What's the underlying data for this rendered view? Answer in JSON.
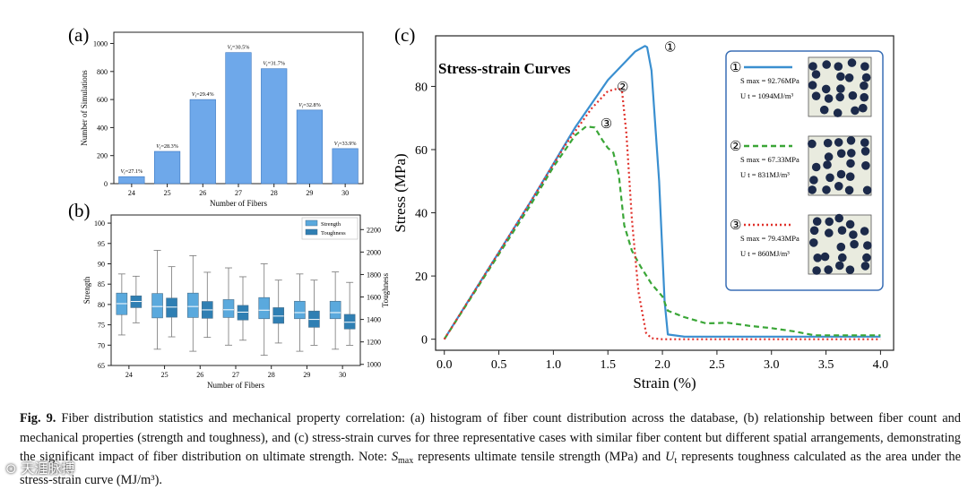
{
  "panels": {
    "a": "(a)",
    "b": "(b)",
    "c": "(c)"
  },
  "chart_data": [
    {
      "id": "a",
      "type": "bar",
      "title": "",
      "xlabel": "Number of Fibers",
      "ylabel": "Number of Simulations",
      "categories": [
        "24",
        "25",
        "26",
        "27",
        "28",
        "29",
        "30"
      ],
      "values": [
        50,
        230,
        600,
        935,
        820,
        525,
        250
      ],
      "bar_labels": [
        "V_f=27.1%",
        "V_f=28.3%",
        "V_f=29.4%",
        "V_f=30.5%",
        "V_f=31.7%",
        "V_f=32.8%",
        "V_f=33.9%"
      ],
      "ylim": [
        0,
        1080
      ],
      "yticks": [
        0,
        200,
        400,
        600,
        800,
        1000
      ],
      "color": "#6ea8ea"
    },
    {
      "id": "b",
      "type": "box",
      "xlabel": "Number of Fibers",
      "ylabel": "Strength",
      "ylabel_right": "Toughness",
      "categories": [
        "24",
        "25",
        "26",
        "27",
        "28",
        "29",
        "30"
      ],
      "ylim": [
        65,
        102
      ],
      "yticks": [
        65,
        70,
        75,
        80,
        85,
        90,
        95,
        100
      ],
      "ylim_right": [
        990,
        2330
      ],
      "yticks_right": [
        1000,
        1200,
        1400,
        1600,
        1800,
        2000,
        2200
      ],
      "legend": [
        "Strength",
        "Toughness"
      ],
      "series": [
        {
          "name": "Strength",
          "color": "#5aa9dd",
          "boxes": [
            {
              "min": 72.5,
              "q1": 77.5,
              "med": 80.2,
              "q3": 82.8,
              "max": 87.5
            },
            {
              "min": 69.0,
              "q1": 76.7,
              "med": 79.5,
              "q3": 82.7,
              "max": 93.3
            },
            {
              "min": 68.5,
              "q1": 76.8,
              "med": 79.5,
              "q3": 82.8,
              "max": 92.0
            },
            {
              "min": 70.0,
              "q1": 76.8,
              "med": 78.7,
              "q3": 81.2,
              "max": 89.0
            },
            {
              "min": 67.5,
              "q1": 76.5,
              "med": 78.6,
              "q3": 81.7,
              "max": 90.0
            },
            {
              "min": 68.5,
              "q1": 76.5,
              "med": 78.0,
              "q3": 80.8,
              "max": 87.5
            },
            {
              "min": 69.0,
              "q1": 76.5,
              "med": 78.0,
              "q3": 80.8,
              "max": 88.0
            }
          ]
        },
        {
          "name": "Toughness",
          "color": "#2f7fb3",
          "boxes": [
            {
              "min": 1370,
              "q1": 1505,
              "med": 1560,
              "q3": 1610,
              "max": 1785
            },
            {
              "min": 1245,
              "q1": 1420,
              "med": 1510,
              "q3": 1590,
              "max": 1870
            },
            {
              "min": 1240,
              "q1": 1410,
              "med": 1485,
              "q3": 1560,
              "max": 1820
            },
            {
              "min": 1215,
              "q1": 1395,
              "med": 1465,
              "q3": 1525,
              "max": 1780
            },
            {
              "min": 1190,
              "q1": 1365,
              "med": 1430,
              "q3": 1505,
              "max": 1750
            },
            {
              "min": 1170,
              "q1": 1330,
              "med": 1400,
              "q3": 1475,
              "max": 1750
            },
            {
              "min": 1170,
              "q1": 1315,
              "med": 1375,
              "q3": 1445,
              "max": 1730
            }
          ]
        }
      ]
    },
    {
      "id": "c",
      "type": "line",
      "title": "Stress-strain Curves",
      "xlabel": "Strain (%)",
      "ylabel": "Stress (MPa)",
      "xlim": [
        -0.08,
        4.12
      ],
      "ylim": [
        -3.5,
        96
      ],
      "xticks": [
        0.0,
        0.5,
        1.0,
        1.5,
        2.0,
        2.5,
        3.0,
        3.5,
        4.0
      ],
      "xtick_labels": [
        "0.0",
        "0.5",
        "1.0",
        "1.5",
        "2.0",
        "2.5",
        "3.0",
        "3.5",
        "4.0"
      ],
      "yticks": [
        0,
        20,
        40,
        60,
        80
      ],
      "series": [
        {
          "name": "①",
          "color": "#3a8fd0",
          "dash": "solid",
          "smax": "S_max = 92.76MPa",
          "ut": "U_t = 1094MJ/m³",
          "x": [
            0,
            0.4,
            0.8,
            1.2,
            1.5,
            1.75,
            1.84,
            1.86,
            1.9,
            1.97,
            2.02,
            2.05,
            2.2,
            3.0,
            4.0
          ],
          "y": [
            0,
            22,
            44,
            67,
            82,
            91,
            92.8,
            92.4,
            85,
            50,
            12,
            1.5,
            0.8,
            0.8,
            0.8
          ]
        },
        {
          "name": "②",
          "color": "#3aa637",
          "dash": "6,4",
          "smax": "S_max = 67.33MPa",
          "ut": "U_t = 831MJ/m³",
          "x": [
            0,
            0.4,
            0.8,
            1.0,
            1.2,
            1.3,
            1.38,
            1.45,
            1.5,
            1.55,
            1.6,
            1.65,
            1.72,
            1.8,
            1.9,
            2.0,
            2.05,
            2.2,
            2.4,
            2.6,
            2.8,
            3.0,
            3.2,
            3.4,
            4.0
          ],
          "y": [
            0,
            21.5,
            43,
            54.5,
            64.5,
            67.3,
            67,
            63,
            60.5,
            59,
            52,
            36,
            28,
            23,
            17.5,
            13.5,
            9,
            7,
            5,
            5.2,
            4.2,
            3.5,
            2.5,
            1.2,
            1.2
          ]
        },
        {
          "name": "③",
          "color": "#e0312b",
          "dash": "2,3",
          "smax": "S_max = 79.43MPa",
          "ut": "U_t = 860MJ/m³",
          "x": [
            0,
            0.4,
            0.8,
            1.1,
            1.35,
            1.5,
            1.6,
            1.63,
            1.67,
            1.72,
            1.78,
            1.85,
            1.9,
            2.0,
            4.0
          ],
          "y": [
            0,
            22,
            44,
            61,
            73,
            78.5,
            79.4,
            78.5,
            65,
            38,
            15,
            2,
            0.3,
            0,
            0
          ]
        }
      ]
    }
  ],
  "caption": {
    "fig_label": "Fig. 9.",
    "text1": " Fiber distribution statistics and mechanical property correlation: (a) histogram of fiber count distribution across the database, (b) relationship between fiber count and mechanical properties (strength and toughness), and (c) stress-strain curves for three representative cases with similar fiber content but different spatial arrangements, demonstrating the significant impact of fiber distribution on ultimate strength. Note: ",
    "smax_sym": "S",
    "smax_sub": "max",
    "text2": " represents ultimate tensile strength (MPa) and ",
    "ut_sym": "U",
    "ut_sub": "t",
    "text3": " represents toughness calculated as the area under the stress-strain curve (MJ/m³)."
  },
  "watermark": "⊙ 天涯脉搏"
}
